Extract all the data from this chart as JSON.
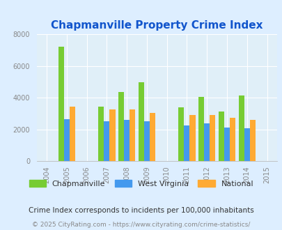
{
  "title": "Chapmanville Property Crime Index",
  "years": [
    2005,
    2007,
    2008,
    2009,
    2011,
    2012,
    2013,
    2014
  ],
  "chapmanville": [
    7250,
    3450,
    4350,
    5000,
    3400,
    4050,
    3150,
    4150
  ],
  "west_virginia": [
    2650,
    2520,
    2600,
    2520,
    2250,
    2380,
    2120,
    2050
  ],
  "national": [
    3450,
    3250,
    3250,
    3050,
    2900,
    2900,
    2750,
    2600
  ],
  "chapmanville_color": "#77cc33",
  "west_virginia_color": "#4499ee",
  "national_color": "#ffaa33",
  "bg_color": "#ddeeff",
  "plot_bg_color": "#e0eff8",
  "title_color": "#1155cc",
  "xlim": [
    2003.5,
    2015.5
  ],
  "ylim": [
    0,
    8000
  ],
  "yticks": [
    0,
    2000,
    4000,
    6000,
    8000
  ],
  "bar_width": 0.28,
  "footnote1": "Crime Index corresponds to incidents per 100,000 inhabitants",
  "footnote2": "© 2025 CityRating.com - https://www.cityrating.com/crime-statistics/",
  "legend_labels": [
    "Chapmanville",
    "West Virginia",
    "National"
  ],
  "xticks": [
    2004,
    2005,
    2006,
    2007,
    2008,
    2009,
    2010,
    2011,
    2012,
    2013,
    2014,
    2015
  ]
}
